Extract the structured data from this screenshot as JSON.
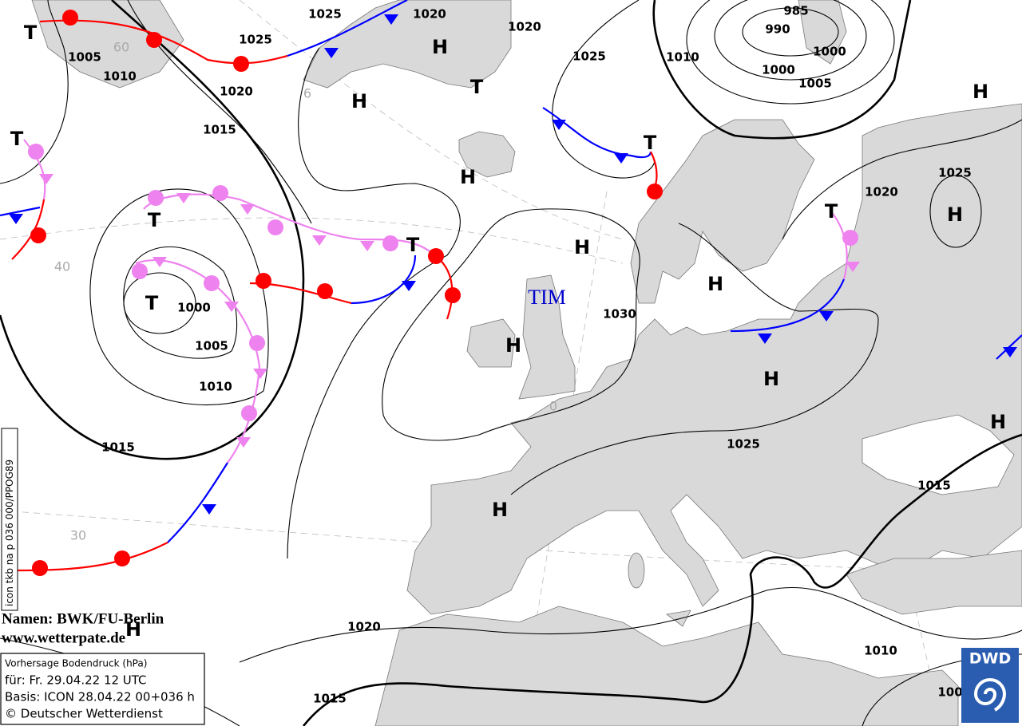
{
  "isobar_labels": [
    "1025",
    "1020",
    "1025",
    "1005",
    "1010",
    "1020",
    "1015",
    "1020",
    "1025",
    "985",
    "990",
    "1010",
    "1000",
    "1000",
    "1005",
    "1025",
    "1020",
    "1000",
    "1005",
    "1010",
    "1015",
    "1030",
    "1025",
    "1015",
    "1020",
    "1010",
    "1015",
    "100"
  ],
  "pressure_systems": [
    "H",
    "H",
    "H",
    "H",
    "H",
    "H",
    "H",
    "H",
    "H",
    "H",
    "H",
    "H",
    "T",
    "T",
    "T",
    "T",
    "T",
    "T",
    "T",
    "T"
  ],
  "latitude_labels": [
    "60",
    "6",
    "40",
    "30",
    "0"
  ],
  "system_name": "TIM",
  "model_code": "icon tkb na p 036 000/PPOG89",
  "credits": {
    "names": "Namen: BWK/FU-Berlin",
    "url": "www.wetterpate.de"
  },
  "info_box": [
    "Vorhersage Bodendruck (hPa)",
    "für:  Fr. 29.04.22  12 UTC",
    "Basis: ICON  28.04.22 00+036 h",
    "© Deutscher Wetterdienst"
  ],
  "logo": "DWD"
}
